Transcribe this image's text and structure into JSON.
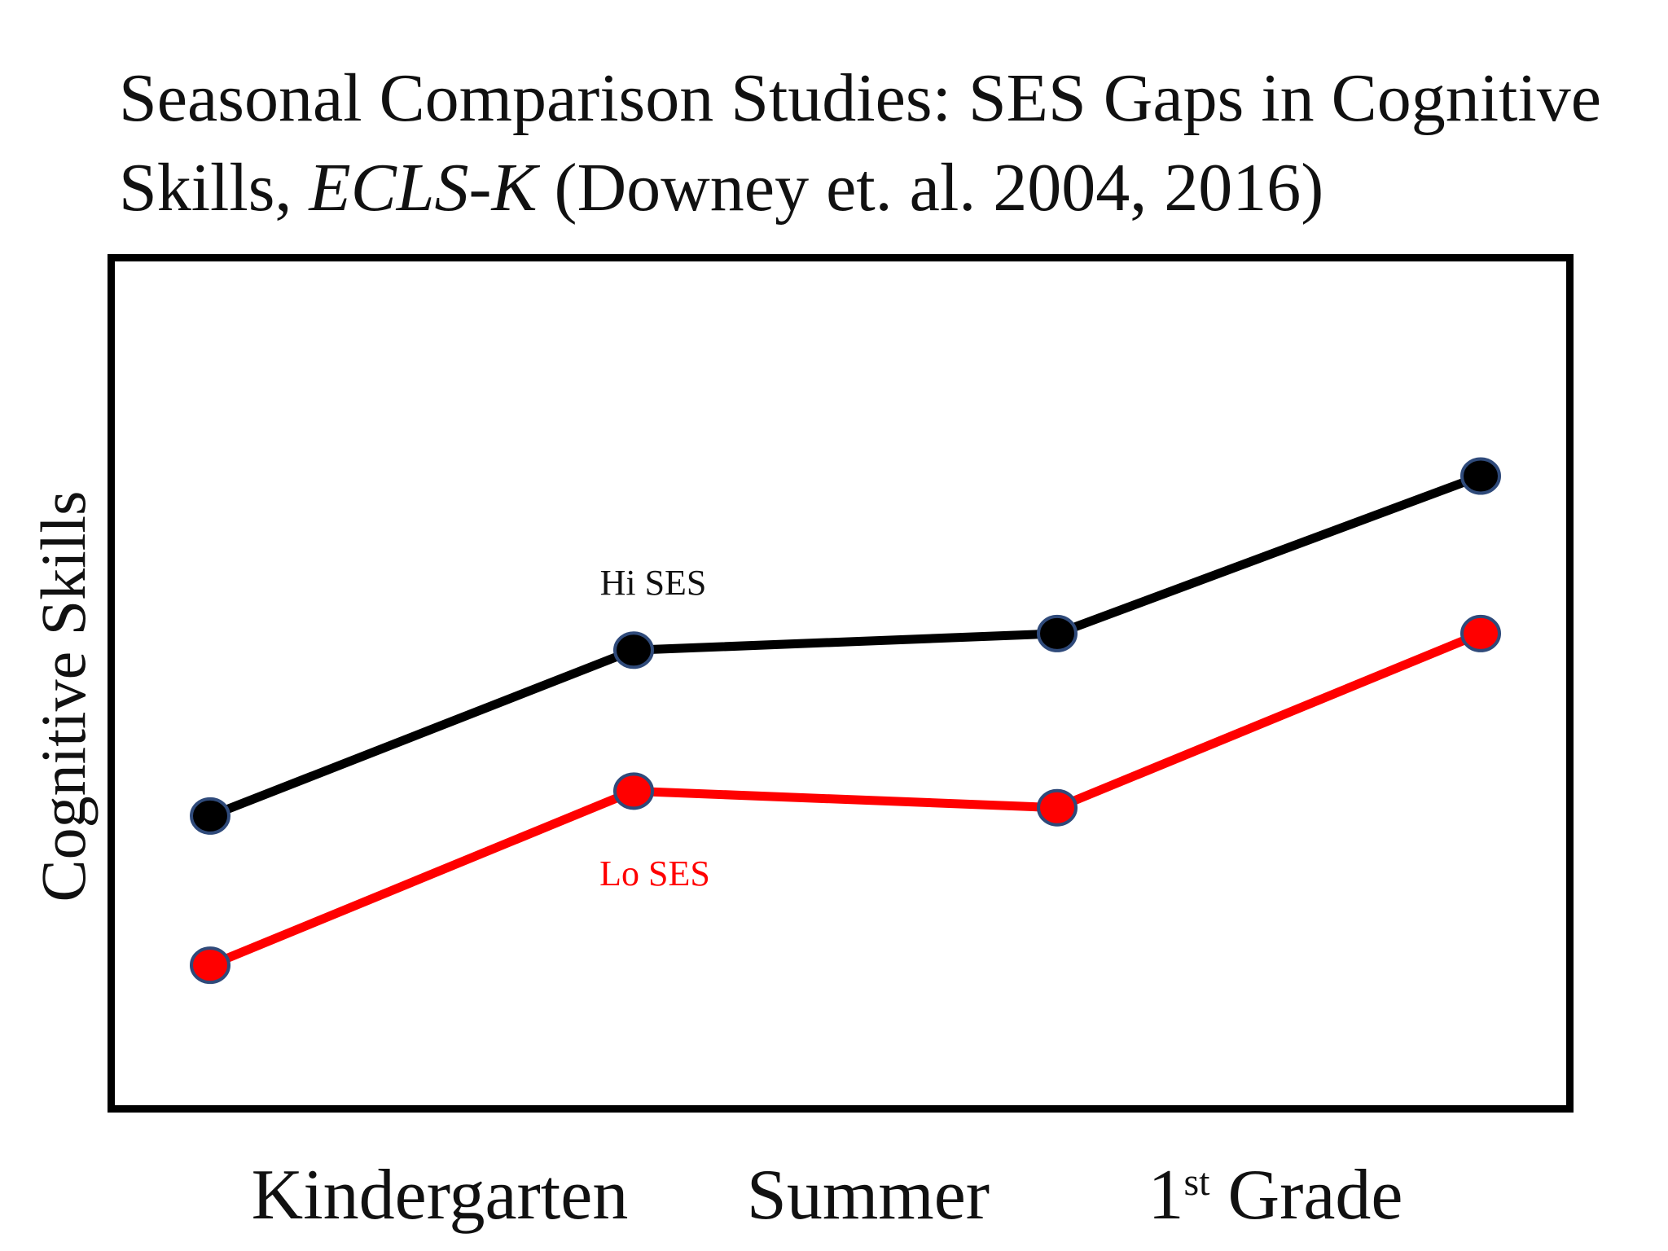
{
  "title": {
    "line1": "Seasonal Comparison Studies:  SES Gaps in Cognitive",
    "line2_prefix": "Skills, ",
    "line2_italic": "ECLS-K",
    "line2_suffix": "  (Downey et. al. 2004, 2016)"
  },
  "colors": {
    "hi": "#000000",
    "lo": "#ff0000",
    "marker_border": "#2f4a7a",
    "frame": "#000000"
  },
  "chart_data": {
    "type": "line",
    "title": "Seasonal Comparison Studies:  SES Gaps in Cognitive Skills, ECLS-K  (Downey et. al. 2004, 2016)",
    "xlabel": "",
    "ylabel": "Cognitive Skills",
    "x_tick_labels": [
      {
        "label": "Kindergarten",
        "sup": "",
        "after": ""
      },
      {
        "label": "Summer",
        "sup": "",
        "after": ""
      },
      {
        "label": "1",
        "sup": "st",
        "after": " Grade"
      }
    ],
    "x": [
      0,
      1,
      2,
      3
    ],
    "xlim": [
      -0.15,
      3.15
    ],
    "ylim": [
      0,
      100
    ],
    "grid": false,
    "legend": "inline labels",
    "series": [
      {
        "name": "Hi SES",
        "values": [
          34,
          54,
          56,
          75
        ],
        "color": "#000000"
      },
      {
        "name": "Lo SES",
        "values": [
          16,
          37,
          35,
          56
        ],
        "color": "#ff0000"
      }
    ]
  }
}
